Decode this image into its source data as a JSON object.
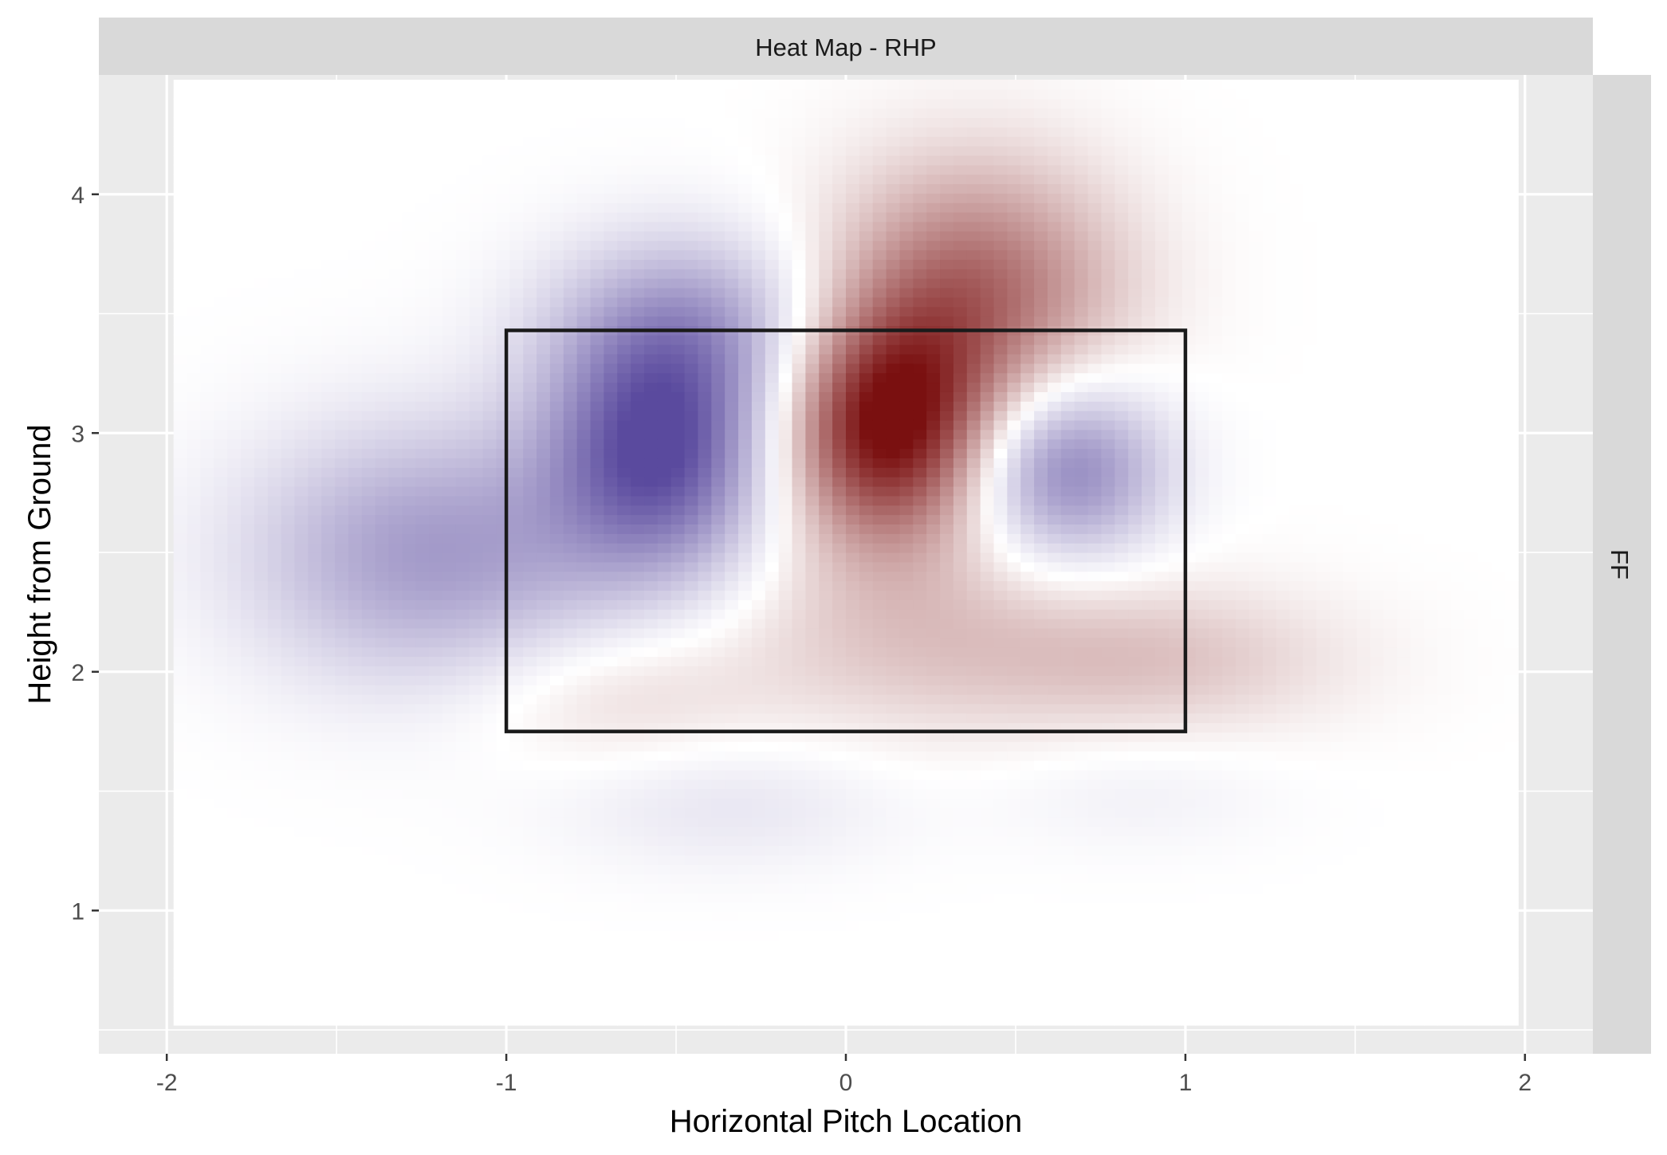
{
  "chart_data": {
    "type": "heatmap",
    "facet_title": "Heat Map - RHP",
    "facet_row_label": "FF",
    "xlabel": "Horizontal Pitch Location",
    "ylabel": "Height from Ground",
    "xlim": [
      -2.2,
      2.2
    ],
    "ylim": [
      0.4,
      4.5
    ],
    "x_ticks": [
      -2,
      -1,
      0,
      1,
      2
    ],
    "x_tick_labels": [
      "-2",
      "-1",
      "0",
      "1",
      "2"
    ],
    "y_ticks": [
      1,
      2,
      3,
      4
    ],
    "y_tick_labels": [
      "1",
      "2",
      "3",
      "4"
    ],
    "grid": true,
    "heat_extent": {
      "x": [
        -1.98,
        1.98
      ],
      "y": [
        0.52,
        4.48
      ]
    },
    "color_scale": {
      "low": "#5a4a9e",
      "mid": "#ffffff",
      "high": "#7a1010"
    },
    "strike_zone": {
      "x": [
        -1.0,
        1.0
      ],
      "y": [
        1.75,
        3.43
      ]
    },
    "hot_cold_spots": [
      {
        "x": 0.12,
        "y": 3.02,
        "sx": 0.22,
        "sy": 0.34,
        "value": 1.0
      },
      {
        "x": 0.38,
        "y": 3.6,
        "sx": 0.3,
        "sy": 0.38,
        "value": 0.6
      },
      {
        "x": 0.22,
        "y": 2.15,
        "sx": 0.42,
        "sy": 0.3,
        "value": 0.22
      },
      {
        "x": 0.95,
        "y": 2.05,
        "sx": 0.38,
        "sy": 0.22,
        "value": 0.22
      },
      {
        "x": -0.7,
        "y": 1.9,
        "sx": 0.3,
        "sy": 0.22,
        "value": 0.16
      },
      {
        "x": -0.55,
        "y": 2.92,
        "sx": 0.23,
        "sy": 0.36,
        "value": -0.95
      },
      {
        "x": -0.45,
        "y": 3.45,
        "sx": 0.3,
        "sy": 0.28,
        "value": -0.45
      },
      {
        "x": 0.65,
        "y": 2.85,
        "sx": 0.2,
        "sy": 0.26,
        "value": -0.7
      },
      {
        "x": -1.22,
        "y": 2.5,
        "sx": 0.38,
        "sy": 0.38,
        "value": -0.55
      },
      {
        "x": -0.35,
        "y": 1.45,
        "sx": 0.35,
        "sy": 0.2,
        "value": -0.14
      },
      {
        "x": 0.85,
        "y": 1.5,
        "sx": 0.3,
        "sy": 0.18,
        "value": -0.08
      }
    ]
  }
}
